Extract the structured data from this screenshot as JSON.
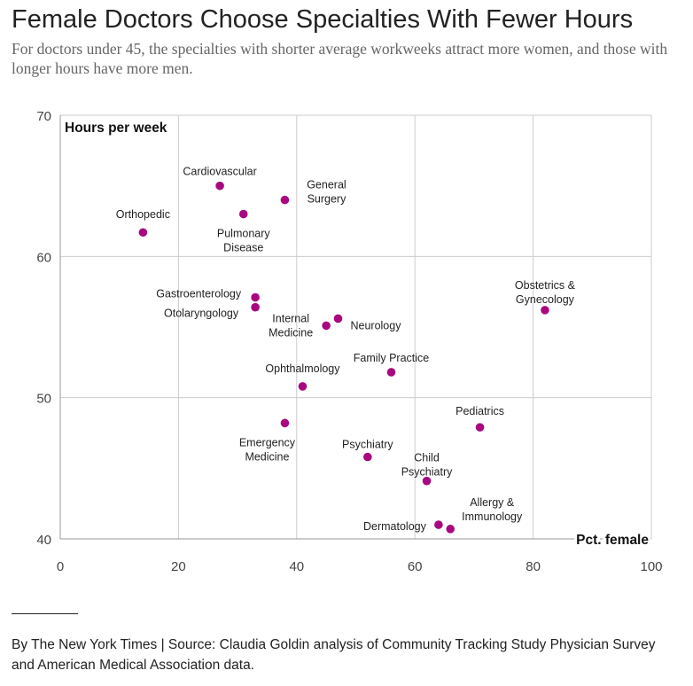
{
  "title": "Female Doctors Choose Specialties With Fewer Hours",
  "subtitle": "For doctors under 45, the specialties with shorter average workweeks attract more women, and those with longer hours have more men.",
  "source": "By The New York Times | Source: Claudia Goldin analysis of Community Tracking Study Physician Survey and American Medical Association data.",
  "colors": {
    "point": "#a8087f",
    "grid": "#cccccc",
    "text": "#222222",
    "tick": "#444444"
  },
  "chart_data": {
    "type": "scatter",
    "xlabel": "Pct. female",
    "ylabel": "Hours per week",
    "xlim": [
      0,
      100
    ],
    "ylim": [
      40,
      70
    ],
    "xticks": [
      0,
      20,
      40,
      60,
      80,
      100
    ],
    "yticks": [
      40,
      50,
      60,
      70
    ],
    "grid": true,
    "points": [
      {
        "name": "Cardiovascular",
        "x": 27,
        "y": 65
      },
      {
        "name": "General Surgery",
        "x": 38,
        "y": 64
      },
      {
        "name": "Orthopedic",
        "x": 14,
        "y": 61.7
      },
      {
        "name": "Pulmonary Disease",
        "x": 31,
        "y": 63
      },
      {
        "name": "Gastroenterology",
        "x": 33,
        "y": 57.1
      },
      {
        "name": "Otolaryngology",
        "x": 33,
        "y": 56.4
      },
      {
        "name": "Internal Medicine",
        "x": 45,
        "y": 55.1
      },
      {
        "name": "Neurology",
        "x": 47,
        "y": 55.6
      },
      {
        "name": "Obstetrics & Gynecology",
        "x": 82,
        "y": 56.2
      },
      {
        "name": "Family Practice",
        "x": 56,
        "y": 51.8
      },
      {
        "name": "Ophthalmology",
        "x": 41,
        "y": 50.8
      },
      {
        "name": "Emergency Medicine",
        "x": 38,
        "y": 48.2
      },
      {
        "name": "Pediatrics",
        "x": 71,
        "y": 47.9
      },
      {
        "name": "Psychiatry",
        "x": 52,
        "y": 45.8
      },
      {
        "name": "Child Psychiatry",
        "x": 62,
        "y": 44.1
      },
      {
        "name": "Allergy & Immunology",
        "x": 66,
        "y": 40.7
      },
      {
        "name": "Dermatology",
        "x": 64,
        "y": 41
      }
    ]
  }
}
